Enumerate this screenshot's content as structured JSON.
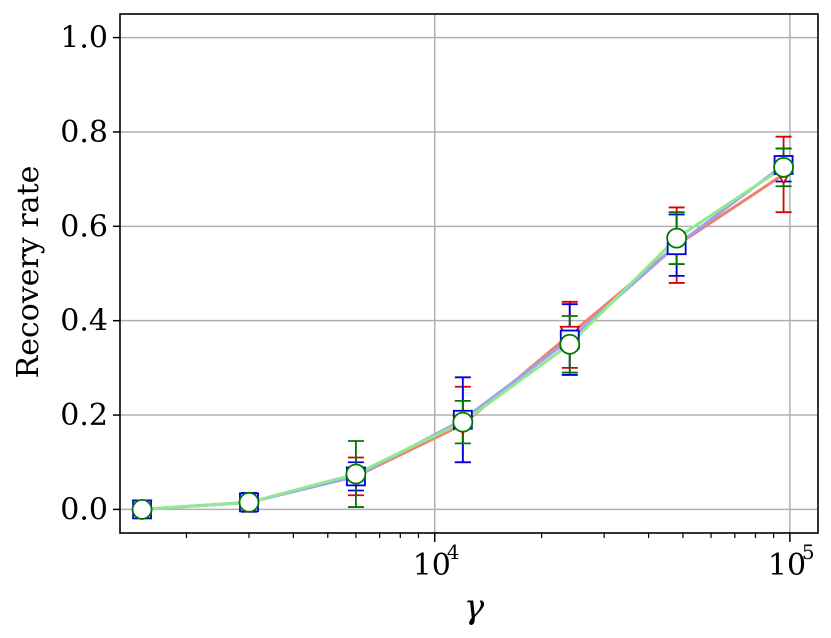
{
  "chart_data": {
    "type": "line",
    "xscale": "log",
    "xlim": [
      1300,
      120000
    ],
    "ylim": [
      -0.05,
      1.05
    ],
    "xlabel": "γ",
    "ylabel": "Recovery rate",
    "grid": true,
    "legend": "none",
    "yticks": [
      {
        "value": 0.0,
        "label": "0.0"
      },
      {
        "value": 0.2,
        "label": "0.2"
      },
      {
        "value": 0.4,
        "label": "0.4"
      },
      {
        "value": 0.6,
        "label": "0.6"
      },
      {
        "value": 0.8,
        "label": "0.8"
      },
      {
        "value": 1.0,
        "label": "1.0"
      }
    ],
    "xticks": [
      {
        "value": 10000,
        "base": "10",
        "exp": "4"
      },
      {
        "value": 100000,
        "base": "10",
        "exp": "5"
      }
    ],
    "x": [
      1500,
      3000,
      6000,
      12000,
      24000,
      48000,
      96000
    ],
    "series": [
      {
        "color": "#f08070",
        "marker": "triangle",
        "marker_color": "#dd0000",
        "values": [
          0.0,
          0.015,
          0.07,
          0.18,
          0.37,
          0.56,
          0.71
        ],
        "err": [
          0.005,
          0.02,
          0.04,
          0.08,
          0.07,
          0.08,
          0.08
        ]
      },
      {
        "color": "#a0a0f0",
        "marker": "square",
        "marker_color": "#0000dd",
        "values": [
          0.0,
          0.015,
          0.07,
          0.19,
          0.36,
          0.56,
          0.73
        ],
        "err": [
          0.005,
          0.02,
          0.03,
          0.09,
          0.075,
          0.065,
          0.035
        ]
      },
      {
        "color": "#90e890",
        "marker": "circle",
        "marker_color": "#007700",
        "values": [
          0.0,
          0.015,
          0.075,
          0.185,
          0.35,
          0.575,
          0.725
        ],
        "err": [
          0.005,
          0.015,
          0.07,
          0.045,
          0.06,
          0.055,
          0.04
        ]
      }
    ]
  }
}
